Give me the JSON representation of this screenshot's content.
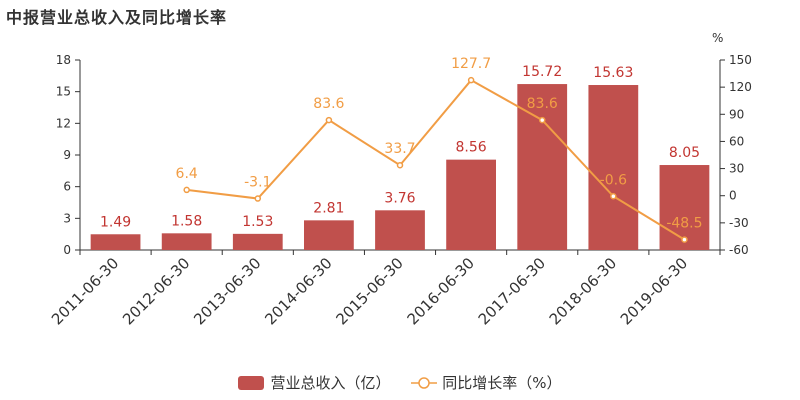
{
  "chart_data": {
    "type": "bar",
    "title": "中报营业总收入及同比增长率",
    "categories": [
      "2011-06-30",
      "2012-06-30",
      "2013-06-30",
      "2014-06-30",
      "2015-06-30",
      "2016-06-30",
      "2017-06-30",
      "2018-06-30",
      "2019-06-30"
    ],
    "series": [
      {
        "name": "营业总收入（亿）",
        "type": "bar",
        "axis": "left",
        "values": [
          1.49,
          1.58,
          1.53,
          2.81,
          3.76,
          8.56,
          15.72,
          15.63,
          8.05
        ],
        "labels": [
          "1.49",
          "1.58",
          "1.53",
          "2.81",
          "3.76",
          "8.56",
          "15.72",
          "15.63",
          "8.05"
        ],
        "color": "#c0504d"
      },
      {
        "name": "同比增长率（%）",
        "type": "line",
        "axis": "right",
        "values": [
          null,
          6.4,
          -3.1,
          83.6,
          33.7,
          127.7,
          83.6,
          -0.6,
          -48.5
        ],
        "labels": [
          "",
          "6.4",
          "-3.1",
          "83.6",
          "33.7",
          "127.7",
          "83.6",
          "-0.6",
          "-48.5"
        ],
        "color": "#f19d45"
      }
    ],
    "y_left": {
      "min": 0,
      "max": 18,
      "ticks": [
        "0",
        "3",
        "6",
        "9",
        "12",
        "15",
        "18"
      ]
    },
    "y_right": {
      "min": -60,
      "max": 150,
      "unit": "%",
      "ticks": [
        "-60",
        "-30",
        "0",
        "30",
        "60",
        "90",
        "120",
        "150"
      ]
    },
    "grid": false,
    "legend_position": "bottom-center"
  },
  "colors": {
    "bar": "#c0504d",
    "bar_label": "#c23531",
    "line": "#f19d45",
    "axis": "#333333"
  },
  "legend": {
    "bar_label": "营业总收入（亿）",
    "line_label": "同比增长率（%）"
  }
}
